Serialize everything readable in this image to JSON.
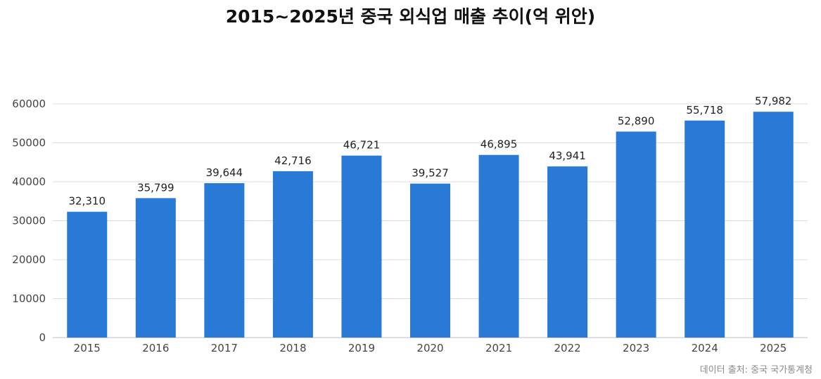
{
  "chart_data": {
    "type": "bar",
    "title": "2015~2025년 중국 외식업 매출 추이(억 위안)",
    "categories": [
      "2015",
      "2016",
      "2017",
      "2018",
      "2019",
      "2020",
      "2021",
      "2022",
      "2023",
      "2024",
      "2025"
    ],
    "values": [
      32310,
      35799,
      39644,
      42716,
      46721,
      39527,
      46895,
      43941,
      52890,
      55718,
      57982
    ],
    "data_labels": [
      "32,310",
      "35,799",
      "39,644",
      "42,716",
      "46,721",
      "39,527",
      "46,895",
      "43,941",
      "52,890",
      "55,718",
      "57,982"
    ],
    "yticks": [
      "0",
      "10000",
      "20000",
      "30000",
      "40000",
      "50000",
      "60000"
    ],
    "ylim": [
      0,
      60000
    ],
    "xlabel": "",
    "ylabel": "",
    "grid": true,
    "legend": "none",
    "bar_color": "#2979d6"
  },
  "source": "데이터 출처: 중국 국가통계청"
}
